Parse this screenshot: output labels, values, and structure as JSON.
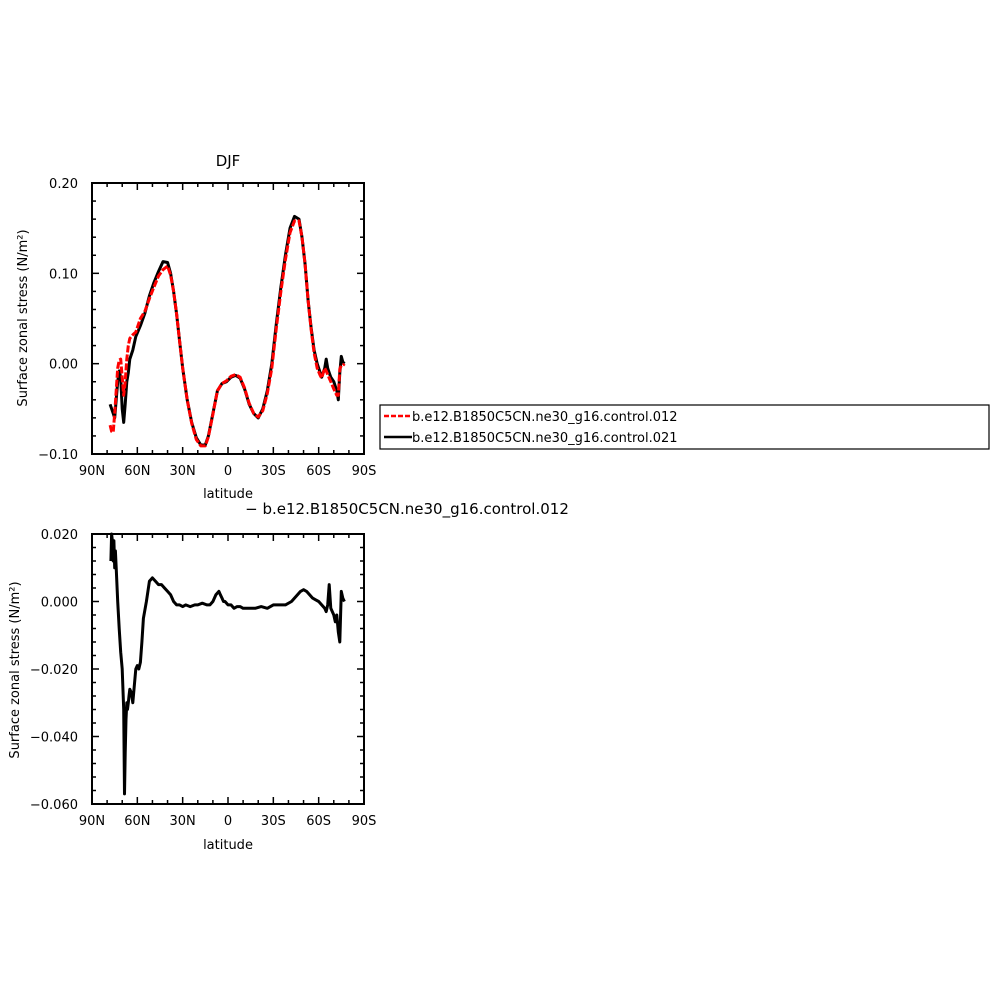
{
  "figure": {
    "title": "DJF",
    "difference_label": "− b.e12.B1850C5CN.ne30_g16.control.012"
  },
  "chart_data": [
    {
      "type": "line",
      "title": "DJF",
      "xlabel": "latitude",
      "ylabel": "Surface zonal stress (N/m²)",
      "xlim": [
        -90,
        90
      ],
      "ylim": [
        -0.1,
        0.2
      ],
      "x_ticks": [
        -90,
        -60,
        -30,
        0,
        30,
        60,
        90
      ],
      "x_tick_labels": [
        "90N",
        "60N",
        "30N",
        "0",
        "30S",
        "60S",
        "90S"
      ],
      "y_ticks": [
        -0.1,
        0.0,
        0.1,
        0.2
      ],
      "y_tick_labels": [
        "−0.10",
        "0.00",
        "0.10",
        "0.20"
      ],
      "legend_position": "right",
      "series": [
        {
          "name": "b.e12.B1850C5CN.ne30_g16.control.021",
          "color": "#000000",
          "dashed": false,
          "x": [
            -78,
            -76,
            -75,
            -74,
            -73,
            -72,
            -71,
            -70,
            -69,
            -68,
            -67,
            -66,
            -65,
            -63,
            -61,
            -58,
            -55,
            -52,
            -49,
            -46,
            -43,
            -40,
            -38,
            -36,
            -34,
            -32,
            -30,
            -27,
            -24,
            -21,
            -18,
            -15,
            -13,
            -10,
            -7,
            -4,
            -1,
            2,
            5,
            8,
            11,
            14,
            17,
            20,
            23,
            26,
            29,
            32,
            35,
            38,
            41,
            44,
            47,
            49,
            51,
            53,
            55,
            57,
            59,
            61,
            62,
            63,
            64,
            65,
            66,
            67,
            68,
            70,
            72,
            73,
            74,
            75,
            76,
            77
          ],
          "y": [
            -0.045,
            -0.055,
            -0.06,
            -0.04,
            -0.02,
            -0.008,
            -0.015,
            -0.05,
            -0.065,
            -0.045,
            -0.02,
            -0.01,
            0.005,
            0.015,
            0.03,
            0.042,
            0.056,
            0.075,
            0.09,
            0.102,
            0.113,
            0.112,
            0.1,
            0.08,
            0.055,
            0.025,
            -0.005,
            -0.04,
            -0.065,
            -0.082,
            -0.09,
            -0.09,
            -0.08,
            -0.055,
            -0.03,
            -0.022,
            -0.02,
            -0.015,
            -0.013,
            -0.016,
            -0.028,
            -0.045,
            -0.055,
            -0.06,
            -0.05,
            -0.03,
            0.0,
            0.045,
            0.085,
            0.12,
            0.15,
            0.163,
            0.16,
            0.14,
            0.11,
            0.07,
            0.04,
            0.015,
            0.0,
            -0.01,
            -0.015,
            -0.01,
            -0.005,
            0.005,
            -0.005,
            -0.01,
            -0.015,
            -0.02,
            -0.03,
            -0.04,
            -0.01,
            0.008,
            0.002,
            0.0
          ]
        },
        {
          "name": "b.e12.B1850C5CN.ne30_g16.control.012",
          "color": "#ff0000",
          "dashed": true,
          "x": [
            -78,
            -77,
            -76,
            -75,
            -74,
            -73,
            -72,
            -71,
            -70,
            -69,
            -68,
            -67,
            -66,
            -65,
            -63,
            -61,
            -58,
            -55,
            -52,
            -49,
            -46,
            -43,
            -40,
            -38,
            -36,
            -34,
            -32,
            -30,
            -27,
            -24,
            -21,
            -18,
            -15,
            -13,
            -10,
            -7,
            -4,
            -1,
            2,
            5,
            8,
            11,
            14,
            17,
            20,
            23,
            26,
            29,
            32,
            35,
            38,
            41,
            44,
            47,
            49,
            51,
            53,
            55,
            57,
            59,
            61,
            62,
            63,
            64,
            65,
            66,
            67,
            68,
            70,
            72,
            73,
            74,
            75,
            76,
            77
          ],
          "y": [
            -0.068,
            -0.075,
            -0.076,
            -0.055,
            -0.03,
            -0.005,
            0.004,
            0.005,
            -0.015,
            -0.035,
            -0.02,
            0.005,
            0.02,
            0.028,
            0.032,
            0.035,
            0.05,
            0.058,
            0.072,
            0.085,
            0.097,
            0.104,
            0.108,
            0.098,
            0.08,
            0.055,
            0.025,
            -0.005,
            -0.04,
            -0.066,
            -0.084,
            -0.091,
            -0.091,
            -0.081,
            -0.056,
            -0.03,
            -0.022,
            -0.019,
            -0.014,
            -0.012,
            -0.015,
            -0.027,
            -0.044,
            -0.055,
            -0.059,
            -0.052,
            -0.033,
            -0.005,
            0.04,
            0.08,
            0.115,
            0.145,
            0.158,
            0.158,
            0.14,
            0.11,
            0.07,
            0.038,
            0.012,
            -0.005,
            -0.013,
            -0.016,
            -0.01,
            -0.005,
            -0.008,
            -0.012,
            -0.016,
            -0.02,
            -0.028,
            -0.035,
            -0.035,
            -0.006,
            -0.002,
            -0.002,
            0.0
          ]
        }
      ]
    },
    {
      "type": "line",
      "title": "",
      "xlabel": "latitude",
      "ylabel": "Surface zonal stress (N/m²)",
      "xlim": [
        -90,
        90
      ],
      "ylim": [
        -0.06,
        0.02
      ],
      "x_ticks": [
        -90,
        -60,
        -30,
        0,
        30,
        60,
        90
      ],
      "x_tick_labels": [
        "90N",
        "60N",
        "30N",
        "0",
        "30S",
        "60S",
        "90S"
      ],
      "y_ticks": [
        -0.06,
        -0.04,
        -0.02,
        0.0,
        0.02
      ],
      "y_tick_labels": [
        "−0.060",
        "−0.040",
        "−0.020",
        "0.000",
        "0.020"
      ],
      "series": [
        {
          "name": "",
          "color": "#000000",
          "dashed": false,
          "x": [
            -77.5,
            -77,
            -76.5,
            -76,
            -75.5,
            -75,
            -74.5,
            -74,
            -73,
            -72,
            -71,
            -70,
            -69,
            -68.5,
            -68,
            -67.5,
            -67,
            -66.5,
            -66,
            -65.5,
            -65,
            -64,
            -63,
            -62,
            -61,
            -60,
            -59,
            -58,
            -57,
            -56,
            -54,
            -52,
            -50,
            -48,
            -46,
            -44,
            -42,
            -40,
            -38,
            -36,
            -34,
            -32,
            -30,
            -28,
            -25,
            -22,
            -20,
            -17,
            -14,
            -12,
            -10,
            -8,
            -6,
            -5,
            -4,
            -3,
            -2,
            0,
            2,
            4,
            6,
            8,
            10,
            14,
            18,
            22,
            26,
            30,
            34,
            38,
            42,
            46,
            48,
            50,
            52,
            54,
            56,
            58,
            60,
            62,
            64,
            65,
            66,
            67,
            68,
            69,
            70,
            71,
            72,
            73,
            74,
            75,
            76,
            77
          ],
          "y": [
            0.012,
            0.02,
            0.018,
            0.012,
            0.018,
            0.01,
            0.015,
            0.01,
            0.0,
            -0.008,
            -0.015,
            -0.02,
            -0.032,
            -0.057,
            -0.045,
            -0.035,
            -0.03,
            -0.032,
            -0.03,
            -0.028,
            -0.026,
            -0.027,
            -0.03,
            -0.025,
            -0.02,
            -0.019,
            -0.02,
            -0.018,
            -0.012,
            -0.005,
            0.0,
            0.006,
            0.007,
            0.006,
            0.005,
            0.005,
            0.004,
            0.003,
            0.002,
            0.0,
            -0.001,
            -0.001,
            -0.0015,
            -0.001,
            -0.0015,
            -0.001,
            -0.001,
            -0.0005,
            -0.001,
            -0.001,
            0.0,
            0.002,
            0.003,
            0.002,
            0.001,
            0.0,
            0.0,
            -0.001,
            -0.001,
            -0.002,
            -0.0015,
            -0.0015,
            -0.002,
            -0.002,
            -0.002,
            -0.0015,
            -0.002,
            -0.001,
            -0.001,
            -0.001,
            0.0,
            0.002,
            0.003,
            0.0035,
            0.003,
            0.002,
            0.001,
            0.0005,
            0.0,
            -0.001,
            -0.002,
            -0.003,
            -0.001,
            0.005,
            -0.002,
            -0.003,
            -0.004,
            -0.006,
            -0.004,
            -0.009,
            -0.012,
            0.003,
            0.001,
            0.0
          ]
        }
      ]
    }
  ]
}
